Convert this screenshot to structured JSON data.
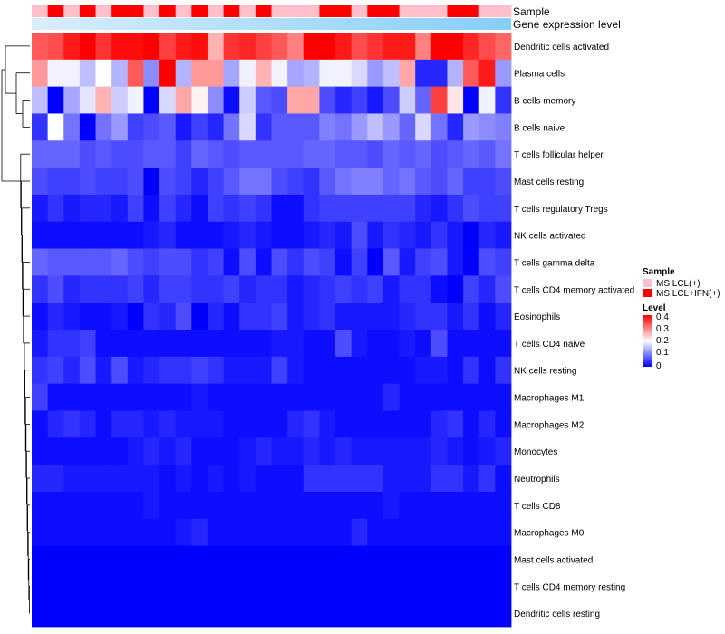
{
  "chart_data": {
    "type": "heatmap",
    "annotation_tracks": [
      {
        "label": "Sample"
      },
      {
        "label": "Gene expression level"
      }
    ],
    "sample_groups": [
      "L",
      "H",
      "L",
      "H",
      "L",
      "H",
      "H",
      "L",
      "H",
      "L",
      "H",
      "L",
      "H",
      "L",
      "H",
      "L",
      "L",
      "L",
      "H",
      "H",
      "L",
      "H",
      "H",
      "L",
      "L",
      "L",
      "H",
      "H",
      "L",
      "L"
    ],
    "rows": [
      "Dendritic cells activated",
      "Plasma cells",
      "B cells memory",
      "B cells naive",
      "T cells follicular helper",
      "Mast cells resting",
      "T cells regulatory  Tregs",
      "NK cells activated",
      "T cells gamma delta",
      "T cells CD4 memory activated",
      "Eosinophils",
      "T cells CD4 naive",
      "NK cells resting",
      "Macrophages M1",
      "Macrophages M2",
      "Monocytes",
      "Neutrophils",
      "T cells CD8",
      "Macrophages M0",
      "Mast cells activated",
      "T cells CD4 memory resting",
      "Dendritic cells resting"
    ],
    "values": [
      [
        0.33,
        0.34,
        0.38,
        0.4,
        0.36,
        0.39,
        0.39,
        0.4,
        0.35,
        0.38,
        0.39,
        0.26,
        0.36,
        0.37,
        0.35,
        0.33,
        0.3,
        0.4,
        0.4,
        0.38,
        0.34,
        0.36,
        0.38,
        0.38,
        0.3,
        0.4,
        0.4,
        0.37,
        0.34,
        0.32
      ],
      [
        0.28,
        0.19,
        0.19,
        0.15,
        0.2,
        0.14,
        0.33,
        0.11,
        0.4,
        0.14,
        0.28,
        0.28,
        0.13,
        0.19,
        0.26,
        0.19,
        0.13,
        0.14,
        0.19,
        0.19,
        0.17,
        0.12,
        0.15,
        0.27,
        0.03,
        0.03,
        0.14,
        0.33,
        0.38,
        0.12
      ],
      [
        0.15,
        0.0,
        0.13,
        0.18,
        0.26,
        0.16,
        0.19,
        0.0,
        0.17,
        0.27,
        0.21,
        0.11,
        0.01,
        0.16,
        0.07,
        0.06,
        0.27,
        0.27,
        0.06,
        0.03,
        0.05,
        0.02,
        0.06,
        0.16,
        0.08,
        0.35,
        0.22,
        0.0,
        0.19,
        0.04
      ],
      [
        0.04,
        0.2,
        0.09,
        0.0,
        0.09,
        0.12,
        0.05,
        0.06,
        0.07,
        0.02,
        0.05,
        0.03,
        0.09,
        0.17,
        0.04,
        0.07,
        0.07,
        0.07,
        0.1,
        0.09,
        0.12,
        0.15,
        0.12,
        0.08,
        0.17,
        0.09,
        0.03,
        0.12,
        0.11,
        0.1
      ],
      [
        0.08,
        0.08,
        0.08,
        0.06,
        0.07,
        0.06,
        0.06,
        0.07,
        0.07,
        0.05,
        0.08,
        0.07,
        0.06,
        0.07,
        0.07,
        0.07,
        0.07,
        0.08,
        0.08,
        0.07,
        0.07,
        0.06,
        0.08,
        0.07,
        0.08,
        0.06,
        0.07,
        0.08,
        0.07,
        0.09
      ],
      [
        0.06,
        0.05,
        0.05,
        0.06,
        0.05,
        0.05,
        0.06,
        0.0,
        0.06,
        0.05,
        0.03,
        0.05,
        0.07,
        0.09,
        0.09,
        0.06,
        0.05,
        0.04,
        0.07,
        0.09,
        0.1,
        0.1,
        0.08,
        0.09,
        0.07,
        0.06,
        0.08,
        0.05,
        0.05,
        0.06
      ],
      [
        0.02,
        0.04,
        0.02,
        0.03,
        0.03,
        0.02,
        0.05,
        0.01,
        0.05,
        0.03,
        0.01,
        0.05,
        0.04,
        0.05,
        0.04,
        0.01,
        0.01,
        0.04,
        0.05,
        0.05,
        0.05,
        0.05,
        0.05,
        0.05,
        0.03,
        0.02,
        0.04,
        0.06,
        0.05,
        0.05
      ],
      [
        0.01,
        0.01,
        0.01,
        0.01,
        0.01,
        0.01,
        0.01,
        0.02,
        0.03,
        0.01,
        0.01,
        0.01,
        0.02,
        0.03,
        0.02,
        0.01,
        0.01,
        0.02,
        0.03,
        0.02,
        0.06,
        0.02,
        0.04,
        0.03,
        0.02,
        0.04,
        0.02,
        0.0,
        0.03,
        0.02
      ],
      [
        0.08,
        0.07,
        0.07,
        0.07,
        0.07,
        0.08,
        0.06,
        0.05,
        0.06,
        0.06,
        0.04,
        0.05,
        0.01,
        0.06,
        0.01,
        0.06,
        0.04,
        0.06,
        0.05,
        0.01,
        0.05,
        0.0,
        0.07,
        0.02,
        0.05,
        0.06,
        0.02,
        0.0,
        0.06,
        0.05
      ],
      [
        0.04,
        0.06,
        0.03,
        0.04,
        0.04,
        0.04,
        0.05,
        0.03,
        0.05,
        0.05,
        0.04,
        0.04,
        0.05,
        0.03,
        0.04,
        0.04,
        0.02,
        0.03,
        0.04,
        0.05,
        0.04,
        0.05,
        0.02,
        0.04,
        0.04,
        0.01,
        0.0,
        0.05,
        0.03,
        0.06
      ],
      [
        0.01,
        0.03,
        0.02,
        0.01,
        0.01,
        0.02,
        0.0,
        0.04,
        0.03,
        0.06,
        0.0,
        0.03,
        0.01,
        0.04,
        0.04,
        0.05,
        0.02,
        0.03,
        0.04,
        0.02,
        0.02,
        0.02,
        0.02,
        0.03,
        0.04,
        0.04,
        0.02,
        0.04,
        0.01,
        0.03
      ],
      [
        0.02,
        0.04,
        0.04,
        0.05,
        0.01,
        0.01,
        0.01,
        0.01,
        0.01,
        0.01,
        0.01,
        0.01,
        0.01,
        0.01,
        0.01,
        0.02,
        0.02,
        0.01,
        0.01,
        0.06,
        0.02,
        0.01,
        0.01,
        0.02,
        0.01,
        0.06,
        0.01,
        0.01,
        0.01,
        0.01
      ],
      [
        0.04,
        0.05,
        0.03,
        0.06,
        0.02,
        0.06,
        0.02,
        0.03,
        0.04,
        0.04,
        0.05,
        0.04,
        0.02,
        0.02,
        0.02,
        0.05,
        0.02,
        0.01,
        0.01,
        0.01,
        0.01,
        0.01,
        0.01,
        0.01,
        0.02,
        0.02,
        0.01,
        0.04,
        0.01,
        0.04
      ],
      [
        0.05,
        0.01,
        0.01,
        0.01,
        0.01,
        0.01,
        0.01,
        0.01,
        0.01,
        0.01,
        0.02,
        0.01,
        0.01,
        0.01,
        0.01,
        0.01,
        0.01,
        0.01,
        0.01,
        0.01,
        0.01,
        0.01,
        0.03,
        0.01,
        0.01,
        0.01,
        0.01,
        0.01,
        0.01,
        0.01
      ],
      [
        0.01,
        0.03,
        0.04,
        0.03,
        0.01,
        0.03,
        0.03,
        0.02,
        0.03,
        0.02,
        0.02,
        0.02,
        0.01,
        0.01,
        0.01,
        0.01,
        0.03,
        0.04,
        0.02,
        0.01,
        0.01,
        0.01,
        0.01,
        0.01,
        0.01,
        0.03,
        0.04,
        0.01,
        0.03,
        0.01
      ],
      [
        0.01,
        0.01,
        0.01,
        0.01,
        0.01,
        0.01,
        0.02,
        0.03,
        0.02,
        0.03,
        0.01,
        0.01,
        0.01,
        0.02,
        0.03,
        0.02,
        0.02,
        0.03,
        0.02,
        0.03,
        0.02,
        0.02,
        0.02,
        0.02,
        0.02,
        0.03,
        0.02,
        0.01,
        0.02,
        0.03
      ],
      [
        0.03,
        0.03,
        0.02,
        0.02,
        0.02,
        0.02,
        0.02,
        0.02,
        0.01,
        0.02,
        0.01,
        0.02,
        0.01,
        0.02,
        0.01,
        0.01,
        0.01,
        0.04,
        0.04,
        0.04,
        0.04,
        0.04,
        0.02,
        0.02,
        0.02,
        0.04,
        0.04,
        0.02,
        0.04,
        0.01
      ],
      [
        0.01,
        0.01,
        0.01,
        0.01,
        0.01,
        0.01,
        0.01,
        0.02,
        0.01,
        0.01,
        0.01,
        0.01,
        0.01,
        0.01,
        0.01,
        0.01,
        0.01,
        0.01,
        0.01,
        0.01,
        0.01,
        0.01,
        0.02,
        0.01,
        0.01,
        0.01,
        0.01,
        0.01,
        0.01,
        0.01
      ],
      [
        0.01,
        0.01,
        0.01,
        0.01,
        0.01,
        0.01,
        0.01,
        0.01,
        0.01,
        0.02,
        0.03,
        0.01,
        0.01,
        0.01,
        0.01,
        0.01,
        0.01,
        0.01,
        0.01,
        0.01,
        0.03,
        0.01,
        0.01,
        0.01,
        0.01,
        0.01,
        0.01,
        0.01,
        0.01,
        0.01
      ],
      [
        0.0,
        0.0,
        0.0,
        0.0,
        0.0,
        0.0,
        0.0,
        0.0,
        0.0,
        0.0,
        0.0,
        0.0,
        0.0,
        0.0,
        0.0,
        0.0,
        0.0,
        0.0,
        0.0,
        0.0,
        0.0,
        0.0,
        0.0,
        0.0,
        0.0,
        0.0,
        0.0,
        0.0,
        0.0,
        0.0
      ],
      [
        0.0,
        0.0,
        0.0,
        0.0,
        0.0,
        0.0,
        0.0,
        0.0,
        0.0,
        0.0,
        0.0,
        0.0,
        0.0,
        0.0,
        0.0,
        0.0,
        0.0,
        0.0,
        0.0,
        0.0,
        0.0,
        0.0,
        0.0,
        0.0,
        0.0,
        0.0,
        0.0,
        0.0,
        0.0,
        0.0
      ],
      [
        0.0,
        0.0,
        0.0,
        0.0,
        0.0,
        0.0,
        0.0,
        0.0,
        0.0,
        0.0,
        0.0,
        0.0,
        0.0,
        0.0,
        0.0,
        0.0,
        0.0,
        0.0,
        0.0,
        0.0,
        0.0,
        0.0,
        0.0,
        0.0,
        0.0,
        0.0,
        0.0,
        0.0,
        0.0,
        0.0
      ]
    ],
    "color_scale": {
      "min": 0,
      "mid": 0.2,
      "max": 0.4,
      "low_color": "#0000ff",
      "mid_color": "#ffffff",
      "high_color": "#ff0000"
    },
    "legends": {
      "sample": {
        "title": "Sample",
        "items": [
          {
            "label": "MS LCL(+)",
            "color": "#ffc0cb"
          },
          {
            "label": "MS LCL+IFN(+)",
            "color": "#ff0000"
          }
        ]
      },
      "level": {
        "title": "Level",
        "ticks": [
          "0.4",
          "0.3",
          "0.2",
          "0.1",
          "0"
        ]
      }
    },
    "gene_expression_color": "#87cefa"
  }
}
